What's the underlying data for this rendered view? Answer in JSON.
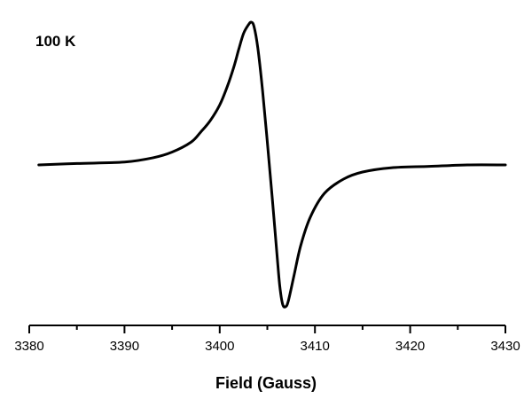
{
  "chart_data": {
    "type": "line",
    "title": "",
    "xlabel": "Field (Gauss)",
    "ylabel": "",
    "annotation": "100 K",
    "xlim": [
      3380,
      3430
    ],
    "ylim": [
      -1.0,
      1.0
    ],
    "x_ticks": [
      3380,
      3390,
      3400,
      3410,
      3420,
      3430
    ],
    "y_axis_shown": false,
    "grid": false,
    "legend": "none",
    "line_color": "#000000",
    "series": [
      {
        "x": [
          3381,
          3385,
          3390,
          3393,
          3395,
          3397,
          3398,
          3399,
          3400,
          3400.8,
          3401.5,
          3402,
          3402.5,
          3403,
          3403.3,
          3403.6,
          3404,
          3404.5,
          3405,
          3405.5,
          3406,
          3406.3,
          3406.6,
          3406.9,
          3407.2,
          3407.8,
          3408.5,
          3409.5,
          3411,
          3413,
          3415,
          3418,
          3422,
          3426,
          3430
        ],
        "y": [
          0.0,
          0.01,
          0.02,
          0.05,
          0.09,
          0.16,
          0.23,
          0.31,
          0.42,
          0.55,
          0.69,
          0.81,
          0.92,
          0.98,
          1.0,
          0.97,
          0.82,
          0.52,
          0.16,
          -0.22,
          -0.62,
          -0.85,
          -0.98,
          -1.0,
          -0.96,
          -0.78,
          -0.57,
          -0.37,
          -0.2,
          -0.1,
          -0.05,
          -0.02,
          -0.01,
          0.0,
          0.0
        ]
      }
    ]
  }
}
